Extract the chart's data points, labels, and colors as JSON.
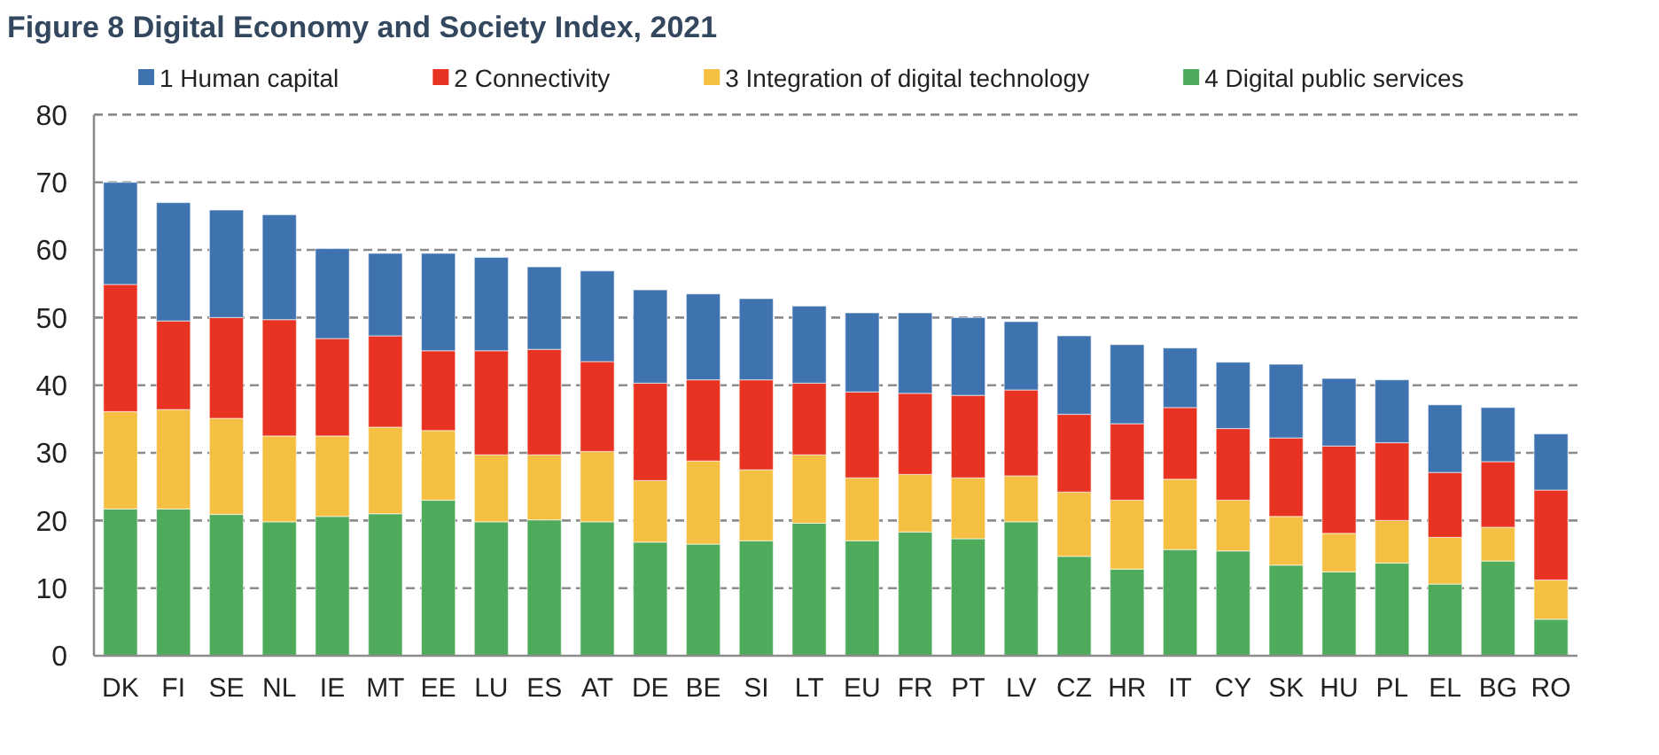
{
  "chart_data": {
    "type": "bar",
    "stacked": true,
    "title": "Figure 8 Digital Economy and Society Index, 2021",
    "categories": [
      "DK",
      "FI",
      "SE",
      "NL",
      "IE",
      "MT",
      "EE",
      "LU",
      "ES",
      "AT",
      "DE",
      "BE",
      "SI",
      "LT",
      "EU",
      "FR",
      "PT",
      "LV",
      "CZ",
      "HR",
      "IT",
      "CY",
      "SK",
      "HU",
      "PL",
      "EL",
      "BG",
      "RO"
    ],
    "series": [
      {
        "name": "4 Digital public services",
        "color": "#4eab5b",
        "values": [
          21.7,
          21.7,
          20.9,
          19.8,
          20.6,
          21.0,
          23.0,
          19.8,
          20.1,
          19.8,
          16.8,
          16.5,
          17.0,
          19.6,
          17.0,
          18.3,
          17.3,
          19.8,
          14.7,
          12.8,
          15.7,
          15.5,
          13.4,
          12.4,
          13.7,
          10.6,
          14.0,
          5.4
        ]
      },
      {
        "name": "3 Integration of digital technology",
        "color": "#f5bf42",
        "values": [
          14.4,
          14.7,
          14.2,
          12.7,
          11.9,
          12.8,
          10.3,
          9.9,
          9.6,
          10.4,
          9.1,
          12.3,
          10.5,
          10.1,
          9.3,
          8.5,
          9.0,
          6.8,
          9.5,
          10.2,
          10.4,
          7.5,
          7.2,
          5.7,
          6.3,
          6.9,
          5.0,
          5.8
        ]
      },
      {
        "name": "2 Connectivity",
        "color": "#e83323",
        "values": [
          18.8,
          13.1,
          14.9,
          17.2,
          14.4,
          13.5,
          11.8,
          15.4,
          15.6,
          13.3,
          14.4,
          12.0,
          13.3,
          10.6,
          12.7,
          12.0,
          12.2,
          12.7,
          11.5,
          11.3,
          10.6,
          10.6,
          11.6,
          12.9,
          11.5,
          9.6,
          9.7,
          13.3
        ]
      },
      {
        "name": "1 Human capital",
        "color": "#3f73b0",
        "values": [
          15.1,
          17.5,
          15.9,
          15.5,
          13.3,
          12.2,
          14.4,
          13.8,
          12.2,
          13.4,
          13.8,
          12.7,
          12.0,
          11.4,
          11.7,
          11.9,
          11.5,
          10.1,
          11.6,
          11.7,
          8.8,
          9.8,
          10.9,
          10.0,
          9.3,
          10.0,
          8.0,
          8.3
        ]
      }
    ],
    "ylim": [
      0,
      80
    ],
    "yticks": [
      0,
      10,
      20,
      30,
      40,
      50,
      60,
      70,
      80
    ],
    "grid": "y",
    "legend": "top"
  }
}
